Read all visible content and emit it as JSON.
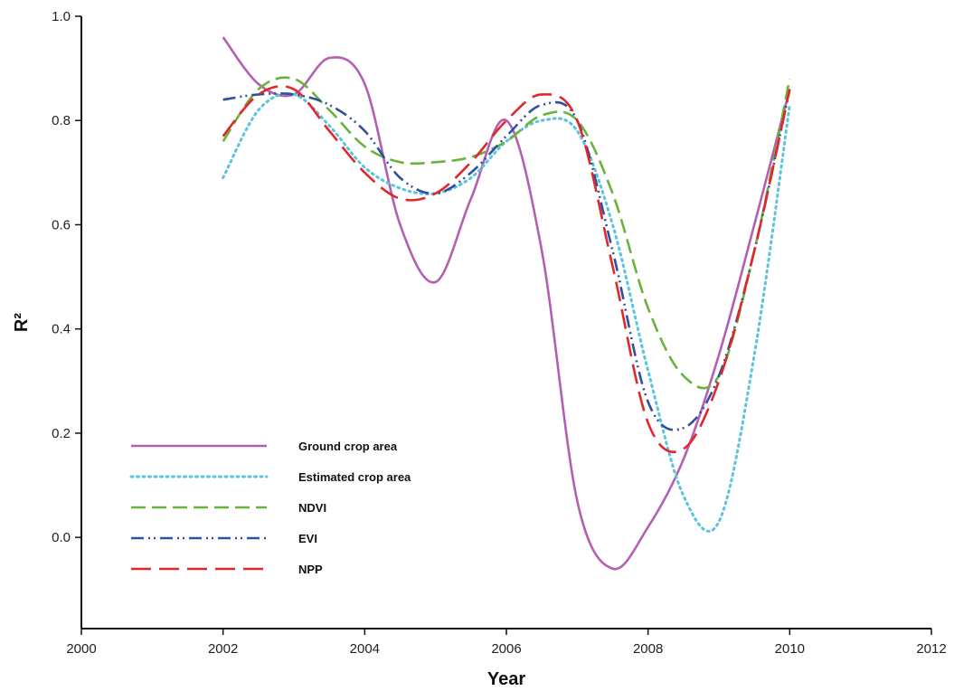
{
  "chart_data": {
    "type": "line",
    "title": "",
    "xlabel": "Year",
    "ylabel": "R²",
    "xlim": [
      2000,
      2012
    ],
    "ylim": [
      -0.175,
      1.0
    ],
    "xticks": [
      2000,
      2002,
      2004,
      2006,
      2008,
      2010,
      2012
    ],
    "xtick_labels": [
      "2000",
      "2002",
      "2004",
      "2006",
      "2008",
      "2010",
      "2012"
    ],
    "yticks": [
      0.0,
      0.2,
      0.4,
      0.6,
      0.8,
      1.0
    ],
    "ytick_labels": [
      "0.0",
      "0.2",
      "0.4",
      "0.6",
      "0.8",
      "1.0"
    ],
    "grid": false,
    "legend_position": "lower-left",
    "series": [
      {
        "name": "Ground crop area",
        "color": "#b35fb3",
        "dash": "solid",
        "x": [
          2002,
          2002.5,
          2003,
          2003.5,
          2004,
          2004.5,
          2005,
          2005.5,
          2006,
          2006.5,
          2007,
          2007.5,
          2008,
          2008.5,
          2009,
          2009.5,
          2010
        ],
        "y": [
          0.96,
          0.87,
          0.85,
          0.92,
          0.87,
          0.6,
          0.49,
          0.65,
          0.8,
          0.55,
          0.07,
          -0.06,
          0.02,
          0.15,
          0.35,
          0.6,
          0.86
        ]
      },
      {
        "name": "Estimated crop area",
        "color": "#5bc4dc",
        "dash": "dotted",
        "x": [
          2002,
          2002.5,
          2003,
          2003.5,
          2004,
          2004.5,
          2005,
          2005.5,
          2006,
          2006.5,
          2007,
          2007.5,
          2008,
          2008.5,
          2009,
          2009.5,
          2010
        ],
        "y": [
          0.69,
          0.82,
          0.85,
          0.79,
          0.71,
          0.67,
          0.66,
          0.69,
          0.76,
          0.8,
          0.78,
          0.6,
          0.32,
          0.08,
          0.03,
          0.35,
          0.83
        ]
      },
      {
        "name": "NDVI",
        "color": "#6ab33a",
        "dash": "dashed",
        "x": [
          2002,
          2002.5,
          2003,
          2003.5,
          2004,
          2004.5,
          2005,
          2005.5,
          2006,
          2006.5,
          2007,
          2007.5,
          2008,
          2008.5,
          2009,
          2009.5,
          2010
        ],
        "y": [
          0.76,
          0.86,
          0.88,
          0.82,
          0.75,
          0.72,
          0.72,
          0.73,
          0.76,
          0.81,
          0.8,
          0.66,
          0.44,
          0.31,
          0.31,
          0.55,
          0.88
        ]
      },
      {
        "name": "EVI",
        "color": "#2f4fa0",
        "dash": "dash-dot-dot",
        "x": [
          2002,
          2002.5,
          2003,
          2003.5,
          2004,
          2004.5,
          2005,
          2005.5,
          2006,
          2006.5,
          2007,
          2007.5,
          2008,
          2008.5,
          2009,
          2009.5,
          2010
        ],
        "y": [
          0.84,
          0.85,
          0.85,
          0.83,
          0.78,
          0.69,
          0.66,
          0.7,
          0.77,
          0.83,
          0.8,
          0.55,
          0.26,
          0.21,
          0.31,
          0.55,
          0.86
        ]
      },
      {
        "name": "NPP",
        "color": "#e02828",
        "dash": "long-dash",
        "x": [
          2002,
          2002.5,
          2003,
          2003.5,
          2004,
          2004.5,
          2005,
          2005.5,
          2006,
          2006.5,
          2007,
          2007.5,
          2008,
          2008.5,
          2009,
          2009.5,
          2010
        ],
        "y": [
          0.77,
          0.85,
          0.86,
          0.78,
          0.7,
          0.65,
          0.66,
          0.72,
          0.8,
          0.85,
          0.8,
          0.52,
          0.22,
          0.17,
          0.3,
          0.55,
          0.86
        ]
      }
    ]
  }
}
